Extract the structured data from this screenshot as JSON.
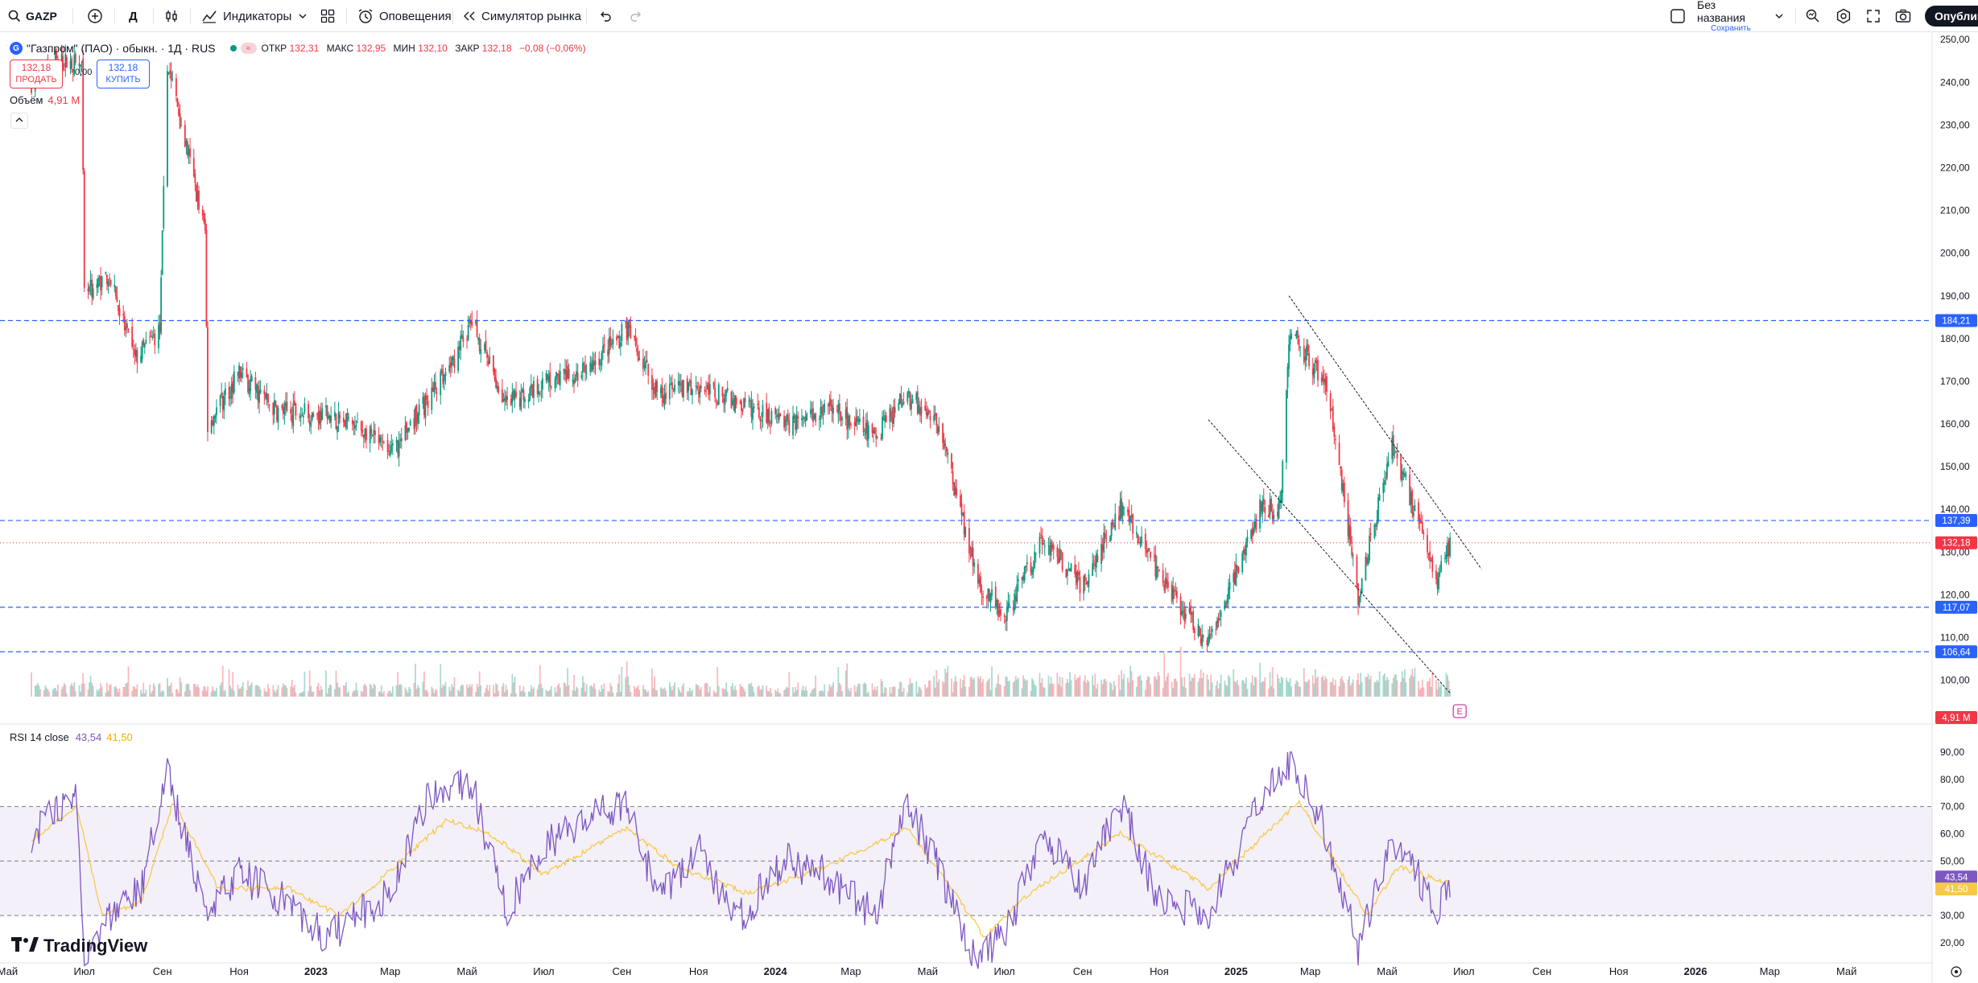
{
  "toolbar": {
    "symbol": "GAZP",
    "interval": "Д",
    "indicators_label": "Индикаторы",
    "alerts_label": "Оповещения",
    "replay_label": "Симулятор рынка",
    "layout_name": "Без названия",
    "layout_status": "Сохранить",
    "publish_label": "Опубликовать"
  },
  "legend": {
    "title": "\"Газпром\" (ПАО) · обыкн. · 1Д · RUS",
    "open_label": "ОТКР",
    "open": "132,31",
    "high_label": "МАКС",
    "high": "132,95",
    "low_label": "МИН",
    "low": "132,10",
    "close_label": "ЗАКР",
    "close": "132,18",
    "change": "−0,08 (−0,06%)",
    "flag": "≈"
  },
  "trade": {
    "sell_price": "132,18",
    "sell_label": "ПРОДАТЬ",
    "buy_price": "132,18",
    "buy_label": "КУПИТЬ",
    "spread": "0,00"
  },
  "volume_legend": {
    "label": "Объём",
    "value": "4,91 M"
  },
  "rsi_legend": {
    "label": "RSI 14 close",
    "rsi": "43,54",
    "ma": "41,50"
  },
  "logo_text": "TradingView",
  "colors": {
    "up": "#089981",
    "down": "#f23645",
    "rsi": "#7e57c2",
    "rsi_ma": "#f7c948",
    "level": "#2962ff",
    "accent": "#2962ff"
  },
  "icons": [
    "search-icon",
    "plus-circle-icon",
    "bar-style-icon",
    "indicators-icon",
    "chevron-down-icon",
    "layouts-grid-icon",
    "alarm-icon",
    "replay-icon",
    "undo-icon",
    "redo-icon",
    "quick-search-icon",
    "settings-icon",
    "fullscreen-icon",
    "camera-icon"
  ],
  "chart_data": [
    {
      "type": "candlestick",
      "symbol": "GAZP",
      "ylim": [
        92,
        254
      ],
      "y_ticks": [
        "250,00",
        "240,00",
        "230,00",
        "220,00",
        "210,00",
        "200,00",
        "190,00",
        "180,00",
        "170,00",
        "160,00",
        "150,00",
        "140,00",
        "130,00",
        "120,00",
        "110,00",
        "100,00"
      ],
      "x_labels": [
        "Май",
        "Июл",
        "Сен",
        "Ноя",
        "2023",
        "Мар",
        "Май",
        "Июл",
        "Сен",
        "Ноя",
        "2024",
        "Мар",
        "Май",
        "Июл",
        "Сен",
        "Ноя",
        "2025",
        "Мар",
        "Май",
        "Июл",
        "Сен",
        "Ноя",
        "2026",
        "Мар",
        "Май"
      ],
      "close_trajectory": [
        {
          "t": "2022-05-20",
          "v": 240
        },
        {
          "t": "2022-06-10",
          "v": 245
        },
        {
          "t": "2022-06-29",
          "v": 244
        },
        {
          "t": "2022-07-01",
          "v": 190
        },
        {
          "t": "2022-07-20",
          "v": 195
        },
        {
          "t": "2022-08-10",
          "v": 175
        },
        {
          "t": "2022-08-30",
          "v": 182
        },
        {
          "t": "2022-09-05",
          "v": 245
        },
        {
          "t": "2022-09-20",
          "v": 225
        },
        {
          "t": "2022-10-05",
          "v": 205
        },
        {
          "t": "2022-10-07",
          "v": 160
        },
        {
          "t": "2022-11-01",
          "v": 172
        },
        {
          "t": "2022-12-01",
          "v": 163
        },
        {
          "t": "2023-01-10",
          "v": 162
        },
        {
          "t": "2023-02-10",
          "v": 158
        },
        {
          "t": "2023-03-01",
          "v": 153
        },
        {
          "t": "2023-04-15",
          "v": 172
        },
        {
          "t": "2023-05-05",
          "v": 184
        },
        {
          "t": "2023-06-01",
          "v": 164
        },
        {
          "t": "2023-07-01",
          "v": 170
        },
        {
          "t": "2023-08-01",
          "v": 172
        },
        {
          "t": "2023-09-05",
          "v": 182
        },
        {
          "t": "2023-10-01",
          "v": 167
        },
        {
          "t": "2023-11-01",
          "v": 169
        },
        {
          "t": "2023-12-01",
          "v": 165
        },
        {
          "t": "2024-01-10",
          "v": 160
        },
        {
          "t": "2024-02-10",
          "v": 164
        },
        {
          "t": "2024-03-20",
          "v": 157
        },
        {
          "t": "2024-04-15",
          "v": 167
        },
        {
          "t": "2024-05-10",
          "v": 159
        },
        {
          "t": "2024-06-10",
          "v": 123
        },
        {
          "t": "2024-07-01",
          "v": 115
        },
        {
          "t": "2024-08-01",
          "v": 133
        },
        {
          "t": "2024-09-01",
          "v": 122
        },
        {
          "t": "2024-10-01",
          "v": 140
        },
        {
          "t": "2024-11-01",
          "v": 125
        },
        {
          "t": "2024-12-10",
          "v": 108
        },
        {
          "t": "2025-01-20",
          "v": 140
        },
        {
          "t": "2025-02-05",
          "v": 140
        },
        {
          "t": "2025-02-13",
          "v": 182
        },
        {
          "t": "2025-03-15",
          "v": 168
        },
        {
          "t": "2025-04-08",
          "v": 120
        },
        {
          "t": "2025-05-05",
          "v": 155
        },
        {
          "t": "2025-05-25",
          "v": 138
        },
        {
          "t": "2025-06-10",
          "v": 123
        },
        {
          "t": "2025-06-20",
          "v": 132.18
        }
      ],
      "horizontal_levels": [
        184.21,
        137.39,
        117.07,
        106.64
      ],
      "price_labels": [
        {
          "text": "184,21",
          "kind": "level"
        },
        {
          "text": "137,39",
          "kind": "level"
        },
        {
          "text": "132,18",
          "kind": "last"
        },
        {
          "text": "117,07",
          "kind": "level"
        },
        {
          "text": "106,64",
          "kind": "level"
        },
        {
          "text": "4,91 M",
          "kind": "volume"
        }
      ],
      "trend_lines": [
        {
          "from": {
            "t": "2025-02-12",
            "v": 190
          },
          "to": {
            "t": "2025-07-15",
            "v": 126
          }
        },
        {
          "from": {
            "t": "2024-12-10",
            "v": 161
          },
          "to": {
            "t": "2025-06-20",
            "v": 97
          }
        }
      ],
      "earnings_marker": {
        "t": "2025-06-20",
        "label": "E"
      }
    },
    {
      "type": "line",
      "title": "RSI 14 close",
      "ylim": [
        7,
        95
      ],
      "y_ticks": [
        "90,00",
        "80,00",
        "70,00",
        "60,00",
        "50,00",
        "40,00",
        "30,00",
        "20,00"
      ],
      "bands": {
        "upper": 70,
        "middle": 50,
        "lower": 30
      },
      "series": [
        {
          "name": "RSI",
          "last": 43.54,
          "points": [
            {
              "t": "2022-05-20",
              "v": 60
            },
            {
              "t": "2022-06-25",
              "v": 75
            },
            {
              "t": "2022-07-01",
              "v": 18
            },
            {
              "t": "2022-08-15",
              "v": 40
            },
            {
              "t": "2022-09-05",
              "v": 82
            },
            {
              "t": "2022-10-07",
              "v": 30
            },
            {
              "t": "2022-11-01",
              "v": 45
            },
            {
              "t": "2022-12-10",
              "v": 35
            },
            {
              "t": "2023-01-10",
              "v": 22
            },
            {
              "t": "2023-03-01",
              "v": 38
            },
            {
              "t": "2023-04-01",
              "v": 75
            },
            {
              "t": "2023-05-05",
              "v": 78
            },
            {
              "t": "2023-06-01",
              "v": 32
            },
            {
              "t": "2023-07-01",
              "v": 55
            },
            {
              "t": "2023-08-01",
              "v": 65
            },
            {
              "t": "2023-09-05",
              "v": 72
            },
            {
              "t": "2023-10-01",
              "v": 35
            },
            {
              "t": "2023-11-01",
              "v": 55
            },
            {
              "t": "2023-12-01",
              "v": 28
            },
            {
              "t": "2024-01-10",
              "v": 50
            },
            {
              "t": "2024-02-10",
              "v": 45
            },
            {
              "t": "2024-03-20",
              "v": 30
            },
            {
              "t": "2024-04-15",
              "v": 70
            },
            {
              "t": "2024-05-10",
              "v": 48
            },
            {
              "t": "2024-06-05",
              "v": 14
            },
            {
              "t": "2024-07-01",
              "v": 22
            },
            {
              "t": "2024-08-01",
              "v": 60
            },
            {
              "t": "2024-09-01",
              "v": 40
            },
            {
              "t": "2024-10-01",
              "v": 72
            },
            {
              "t": "2024-11-01",
              "v": 35
            },
            {
              "t": "2024-12-10",
              "v": 30
            },
            {
              "t": "2025-01-20",
              "v": 72
            },
            {
              "t": "2025-02-13",
              "v": 87
            },
            {
              "t": "2025-03-10",
              "v": 65
            },
            {
              "t": "2025-04-08",
              "v": 18
            },
            {
              "t": "2025-05-05",
              "v": 58
            },
            {
              "t": "2025-05-25",
              "v": 45
            },
            {
              "t": "2025-06-10",
              "v": 30
            },
            {
              "t": "2025-06-20",
              "v": 43.54
            }
          ]
        },
        {
          "name": "RSI MA",
          "last": 41.5,
          "points": [
            {
              "t": "2022-05-20",
              "v": 58
            },
            {
              "t": "2022-06-25",
              "v": 70
            },
            {
              "t": "2022-07-15",
              "v": 30
            },
            {
              "t": "2022-08-15",
              "v": 35
            },
            {
              "t": "2022-09-10",
              "v": 72
            },
            {
              "t": "2022-10-15",
              "v": 40
            },
            {
              "t": "2022-12-10",
              "v": 40
            },
            {
              "t": "2023-01-20",
              "v": 30
            },
            {
              "t": "2023-04-15",
              "v": 65
            },
            {
              "t": "2023-05-20",
              "v": 60
            },
            {
              "t": "2023-07-01",
              "v": 45
            },
            {
              "t": "2023-09-05",
              "v": 62
            },
            {
              "t": "2023-10-15",
              "v": 48
            },
            {
              "t": "2023-12-10",
              "v": 38
            },
            {
              "t": "2024-02-10",
              "v": 48
            },
            {
              "t": "2024-04-15",
              "v": 62
            },
            {
              "t": "2024-05-20",
              "v": 40
            },
            {
              "t": "2024-06-15",
              "v": 22
            },
            {
              "t": "2024-07-20",
              "v": 38
            },
            {
              "t": "2024-10-01",
              "v": 60
            },
            {
              "t": "2024-12-10",
              "v": 40
            },
            {
              "t": "2025-01-20",
              "v": 58
            },
            {
              "t": "2025-02-20",
              "v": 72
            },
            {
              "t": "2025-04-15",
              "v": 30
            },
            {
              "t": "2025-05-10",
              "v": 48
            },
            {
              "t": "2025-06-20",
              "v": 41.5
            }
          ]
        }
      ],
      "price_labels": [
        {
          "text": "43,54",
          "kind": "rsi"
        },
        {
          "text": "41,50",
          "kind": "ma"
        }
      ]
    }
  ]
}
